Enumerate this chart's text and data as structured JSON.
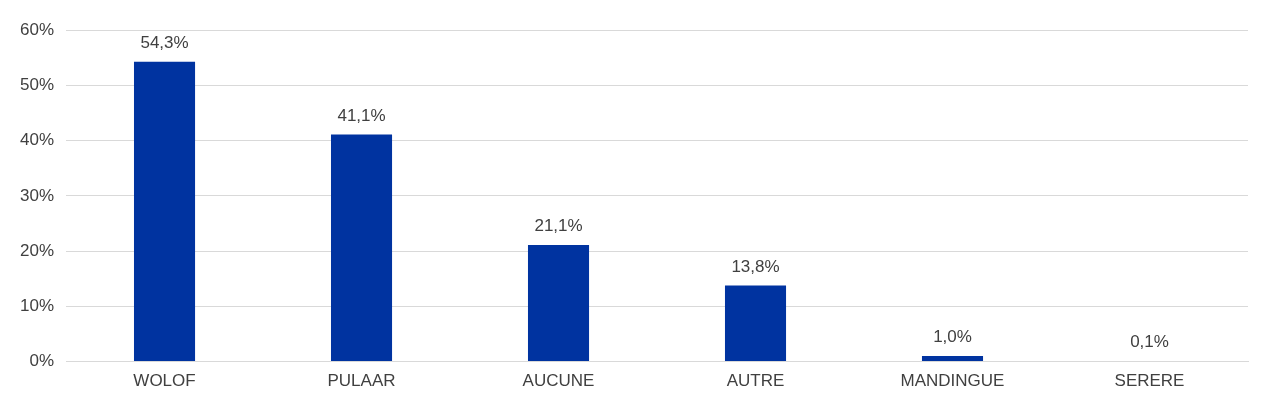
{
  "chart_data": {
    "type": "bar",
    "categories": [
      "WOLOF",
      "PULAAR",
      "AUCUNE",
      "AUTRE",
      "MANDINGUE",
      "SERERE"
    ],
    "values": [
      54.3,
      41.1,
      21.1,
      13.8,
      1.0,
      0.1
    ],
    "value_labels": [
      "54,3%",
      "41,1%",
      "21,1%",
      "13,8%",
      "1,0%",
      "0,1%"
    ],
    "color": "#0033a0",
    "ylim": [
      0,
      60
    ],
    "yticks": [
      {
        "value": 0,
        "label": "0%"
      },
      {
        "value": 10,
        "label": "10%"
      },
      {
        "value": 20,
        "label": "20%"
      },
      {
        "value": 30,
        "label": "30%"
      },
      {
        "value": 40,
        "label": "40%"
      },
      {
        "value": 50,
        "label": "50%"
      },
      {
        "value": 60,
        "label": "60%"
      }
    ],
    "grid": "y",
    "legend": false
  }
}
